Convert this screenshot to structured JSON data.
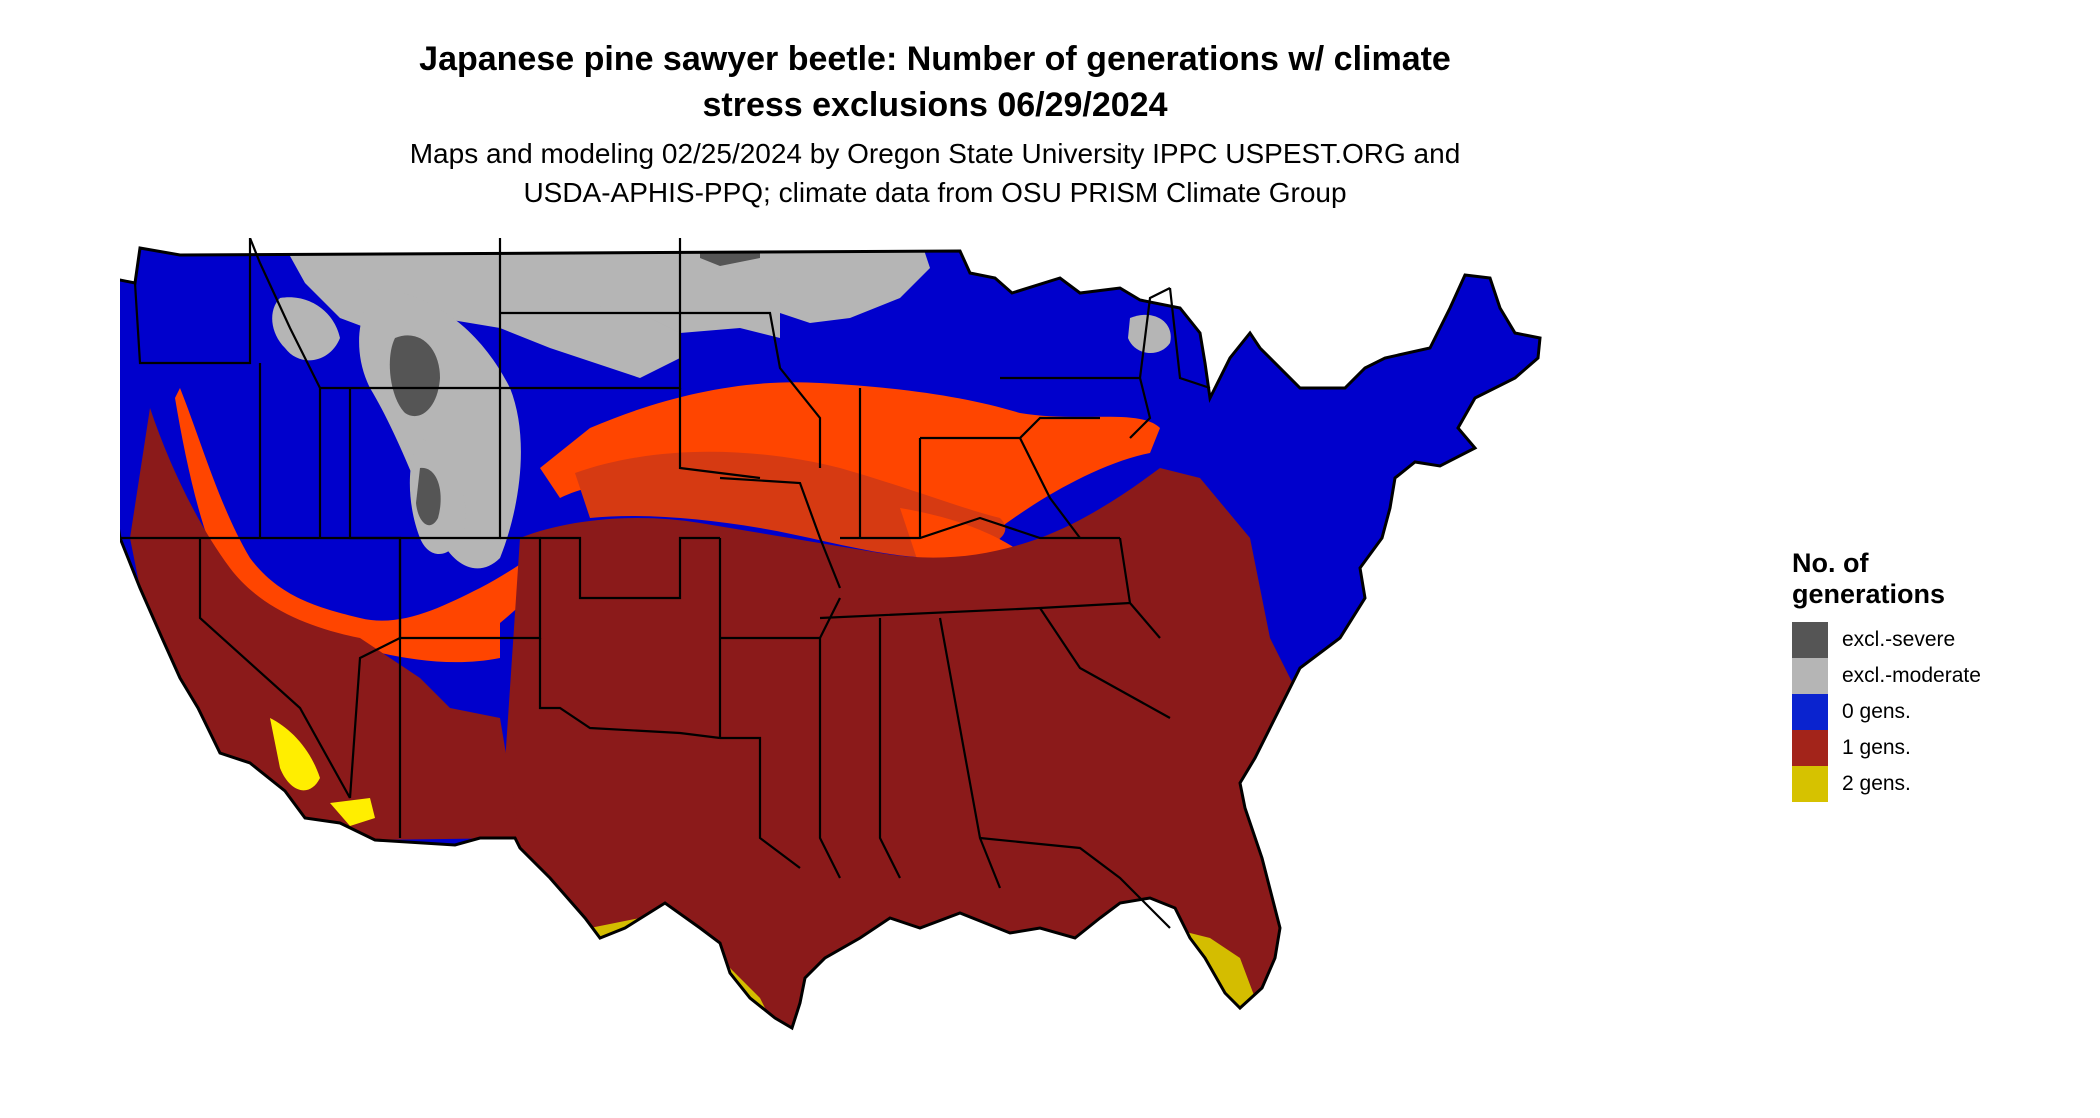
{
  "header": {
    "title_line1": "Japanese pine sawyer beetle: Number of generations w/ climate",
    "title_line2": "stress exclusions 06/29/2024",
    "subtitle_line1": "Maps and modeling 02/25/2024 by Oregon State University IPPC USPEST.ORG and",
    "subtitle_line2": "USDA-APHIS-PPQ; climate data from OSU PRISM Climate Group"
  },
  "legend": {
    "title_line1": "No. of",
    "title_line2": "generations",
    "items": [
      {
        "label": "excl.-severe",
        "color": "#555555"
      },
      {
        "label": "excl.-moderate",
        "color": "#b5b5b5"
      },
      {
        "label": "0 gens.",
        "color": "#0a23cf"
      },
      {
        "label": "1 gens.",
        "color": "#a3241a"
      },
      {
        "label": "2 gens.",
        "color": "#d6c200"
      }
    ]
  },
  "map_colors": {
    "excl_severe": "#555555",
    "excl_moderate": "#b5b5b5",
    "zero_gens": "#0000cc",
    "one_gen": "#8b1a1a",
    "transition_orange": "#ff4500",
    "transition_darkorange": "#d63a12",
    "two_gens": "#d4bd00",
    "two_gens_bright": "#ffee00",
    "border": "#000000"
  }
}
